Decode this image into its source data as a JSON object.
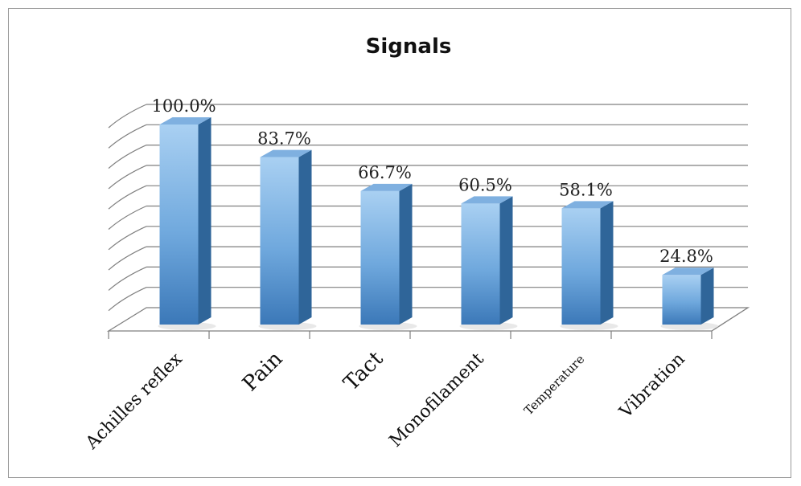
{
  "chart_data": {
    "type": "bar",
    "title": "Signals",
    "categories": [
      "Achilles reflex",
      "Pain",
      "Tact",
      "Monofilament",
      "Temperature",
      "Vibration"
    ],
    "values": [
      100.0,
      83.7,
      66.7,
      60.5,
      58.1,
      24.8
    ],
    "value_labels": [
      "100.0%",
      "83.7%",
      "66.7%",
      "60.5%",
      "58.1%",
      "24.8%"
    ],
    "ylim": [
      0,
      100
    ],
    "grid": true,
    "legend": "none",
    "style": "3d-column",
    "colors": {
      "bar_light": "#a9d0f2",
      "bar_mid": "#6fa8dd",
      "bar_dark": "#3b78b8",
      "bar_side": "#2f6599",
      "grid": "#7f7f7f"
    }
  }
}
